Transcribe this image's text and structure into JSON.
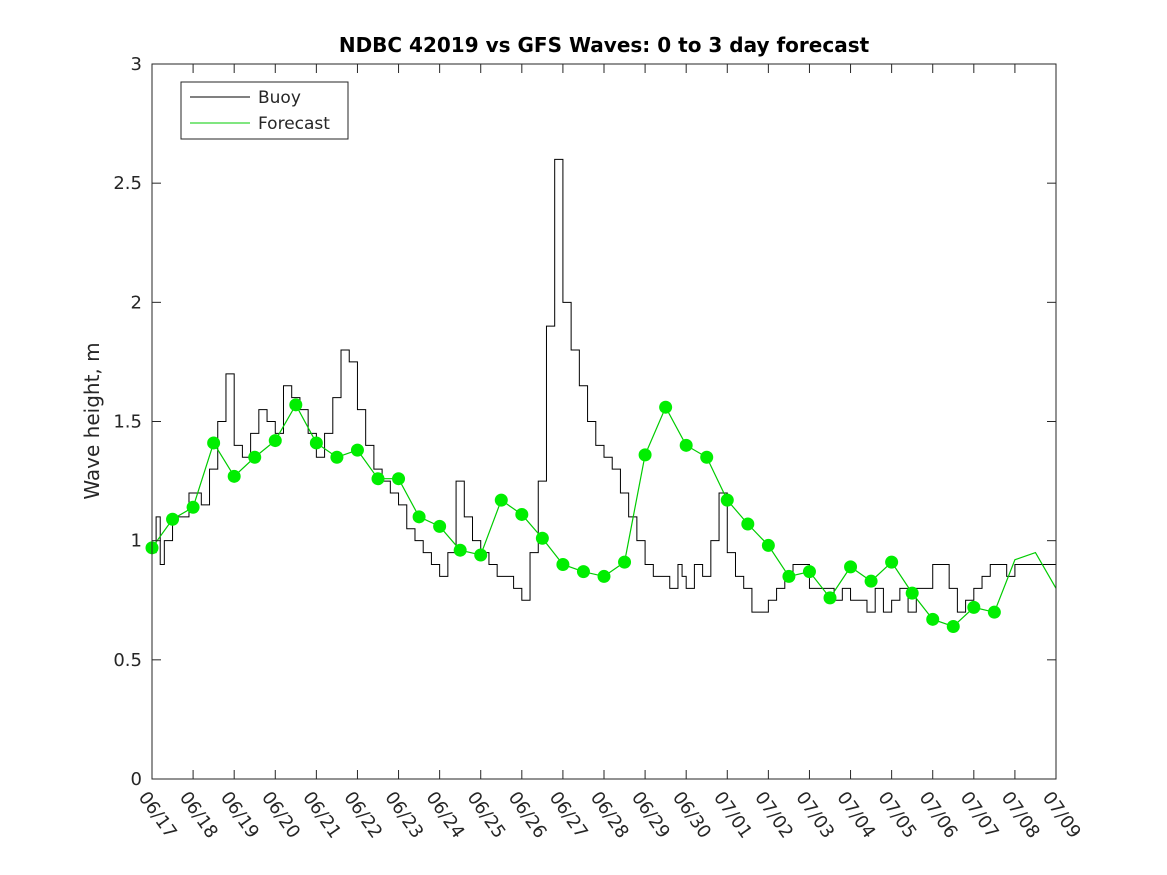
{
  "chart_data": {
    "type": "line",
    "title": "NDBC 42019 vs GFS Waves: 0 to 3 day forecast",
    "xlabel": "",
    "ylabel": "Wave height, m",
    "ylim": [
      0,
      3
    ],
    "xlim": [
      "06/17",
      "07/09"
    ],
    "x_tick_labels": [
      "06/17",
      "06/18",
      "06/19",
      "06/20",
      "06/21",
      "06/22",
      "06/23",
      "06/24",
      "06/25",
      "06/26",
      "06/27",
      "06/28",
      "06/29",
      "06/30",
      "07/01",
      "07/02",
      "07/03",
      "07/04",
      "07/05",
      "07/06",
      "07/07",
      "07/08",
      "07/09"
    ],
    "y_tick_labels": [
      "0",
      "0.5",
      "1",
      "1.5",
      "2",
      "2.5",
      "3"
    ],
    "y_ticks": [
      0,
      0.5,
      1,
      1.5,
      2,
      2.5,
      3
    ],
    "legend": {
      "placement": "top-left",
      "entries": [
        {
          "label": "Buoy",
          "color": "#000000"
        },
        {
          "label": "Forecast",
          "color": "#00cc00"
        }
      ]
    },
    "colors": {
      "buoy": "#000000",
      "forecast": "#00cc00",
      "forecast_marker": "#00ee00"
    },
    "series": [
      {
        "name": "Buoy",
        "x_days": [
          0.0,
          0.1,
          0.2,
          0.3,
          0.5,
          0.7,
          0.9,
          1.0,
          1.2,
          1.4,
          1.6,
          1.8,
          2.0,
          2.2,
          2.4,
          2.6,
          2.8,
          3.0,
          3.2,
          3.4,
          3.6,
          3.8,
          4.0,
          4.2,
          4.4,
          4.6,
          4.8,
          5.0,
          5.2,
          5.4,
          5.6,
          5.8,
          6.0,
          6.2,
          6.4,
          6.6,
          6.8,
          7.0,
          7.2,
          7.4,
          7.6,
          7.8,
          8.0,
          8.2,
          8.4,
          8.6,
          8.8,
          9.0,
          9.2,
          9.4,
          9.6,
          9.8,
          10.0,
          10.2,
          10.4,
          10.6,
          10.8,
          11.0,
          11.2,
          11.4,
          11.6,
          11.8,
          12.0,
          12.2,
          12.4,
          12.6,
          12.8,
          12.9,
          13.0,
          13.2,
          13.4,
          13.6,
          13.8,
          14.0,
          14.2,
          14.4,
          14.6,
          14.8,
          15.0,
          15.2,
          15.4,
          15.6,
          15.8,
          16.0,
          16.2,
          16.4,
          16.6,
          16.8,
          17.0,
          17.2,
          17.4,
          17.6,
          17.8,
          18.0,
          18.2,
          18.4,
          18.6,
          18.8,
          19.0,
          19.2,
          19.4,
          19.6,
          19.8,
          20.0,
          20.2,
          20.4,
          20.6,
          20.8,
          21.0,
          21.2,
          21.4,
          21.6,
          21.8,
          22.0
        ],
        "values": [
          0.95,
          1.1,
          0.9,
          1.0,
          1.1,
          1.1,
          1.2,
          1.2,
          1.15,
          1.3,
          1.5,
          1.7,
          1.4,
          1.35,
          1.45,
          1.55,
          1.5,
          1.45,
          1.65,
          1.6,
          1.55,
          1.45,
          1.35,
          1.45,
          1.6,
          1.8,
          1.75,
          1.55,
          1.4,
          1.3,
          1.25,
          1.2,
          1.15,
          1.05,
          1.0,
          0.95,
          0.9,
          0.85,
          0.95,
          1.25,
          1.1,
          1.0,
          0.95,
          0.9,
          0.85,
          0.85,
          0.8,
          0.75,
          0.95,
          1.25,
          1.9,
          2.6,
          2.0,
          1.8,
          1.65,
          1.5,
          1.4,
          1.35,
          1.3,
          1.2,
          1.1,
          1.0,
          0.9,
          0.85,
          0.85,
          0.8,
          0.9,
          0.85,
          0.8,
          0.9,
          0.85,
          1.0,
          1.2,
          0.95,
          0.85,
          0.8,
          0.7,
          0.7,
          0.75,
          0.8,
          0.85,
          0.9,
          0.9,
          0.8,
          0.8,
          0.8,
          0.75,
          0.8,
          0.75,
          0.75,
          0.7,
          0.8,
          0.7,
          0.75,
          0.8,
          0.7,
          0.8,
          0.8,
          0.9,
          0.9,
          0.8,
          0.7,
          0.75,
          0.8,
          0.85,
          0.9,
          0.9,
          0.85,
          0.9,
          0.9,
          0.9,
          0.9,
          0.9,
          0.9
        ]
      },
      {
        "name": "Forecast",
        "x_days": [
          0.0,
          0.5,
          1.0,
          1.5,
          2.0,
          2.5,
          3.0,
          3.5,
          4.0,
          4.5,
          5.0,
          5.5,
          6.0,
          6.5,
          7.0,
          7.5,
          8.0,
          8.5,
          9.0,
          9.5,
          10.0,
          10.5,
          11.0,
          11.5,
          12.0,
          12.5,
          13.0,
          13.5,
          14.0,
          14.5,
          15.0,
          15.5,
          16.0,
          16.5,
          17.0,
          17.5,
          18.0,
          18.5,
          19.0,
          19.5,
          20.0,
          20.5,
          21.0,
          21.5,
          22.0
        ],
        "values": [
          0.97,
          1.09,
          1.14,
          1.41,
          1.27,
          1.35,
          1.42,
          1.57,
          1.41,
          1.35,
          1.38,
          1.26,
          1.26,
          1.1,
          1.06,
          0.96,
          0.94,
          1.17,
          1.11,
          1.01,
          0.9,
          0.87,
          0.85,
          0.91,
          1.36,
          1.56,
          1.4,
          1.35,
          1.17,
          1.07,
          0.98,
          0.85,
          0.87,
          0.76,
          0.89,
          0.83,
          0.91,
          0.78,
          0.67,
          0.64,
          0.72,
          0.7,
          0.92,
          0.95,
          0.8
        ]
      }
    ],
    "forecast_markers": {
      "x_days": [
        0.0,
        0.5,
        1.0,
        1.5,
        2.0,
        2.5,
        3.0,
        3.5,
        4.0,
        4.5,
        5.0,
        5.5,
        6.0,
        6.5,
        7.0,
        7.5,
        8.0,
        8.5,
        9.0,
        9.5,
        10.0,
        10.5,
        11.0,
        11.5,
        12.0,
        12.5,
        13.0,
        13.5,
        14.0,
        14.5,
        15.0,
        15.5,
        16.0,
        16.5,
        17.0,
        17.5,
        18.0,
        18.5,
        19.0,
        19.5,
        20.0,
        20.5
      ],
      "values": [
        0.97,
        1.09,
        1.14,
        1.41,
        1.27,
        1.35,
        1.42,
        1.57,
        1.41,
        1.35,
        1.38,
        1.26,
        1.26,
        1.1,
        1.06,
        0.96,
        0.94,
        1.17,
        1.11,
        1.01,
        0.9,
        0.87,
        0.85,
        0.91,
        1.36,
        1.56,
        1.4,
        1.35,
        1.17,
        1.07,
        0.98,
        0.85,
        0.87,
        0.76,
        0.89,
        0.83,
        0.91,
        0.78,
        0.67,
        0.64,
        0.72,
        0.7
      ]
    }
  }
}
